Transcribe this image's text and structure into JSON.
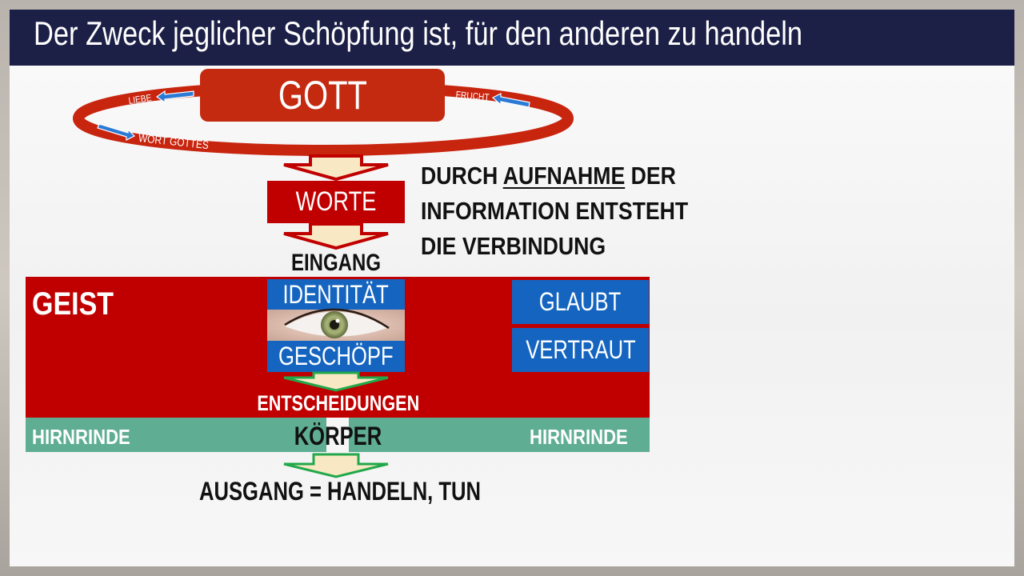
{
  "title": "Der Zweck jeglicher Schöpfung ist, für den anderen zu handeln",
  "cycle": {
    "center": "GOTT",
    "labels": {
      "love": "LIEBE",
      "fruit": "FRUCHT",
      "word": "WORT GOTTES"
    }
  },
  "words": "WORTE",
  "input": "EINGANG",
  "explanation": {
    "line1_pre": "DURCH ",
    "line1_underlined": "AUFNAHME",
    "line1_post": " DER",
    "line2": "INFORMATION ENTSTEHT",
    "line3": "DIE VERBINDUNG"
  },
  "spirit": {
    "label": "GEIST",
    "identity": "IDENTITÄT",
    "creature": "GESCHÖPF",
    "believes": "GLAUBT",
    "trusts": "VERTRAUT",
    "decisions": "ENTSCHEIDUNGEN"
  },
  "body": {
    "left": "HIRNRINDE",
    "center": "KÖRPER",
    "right": "HIRNRINDE"
  },
  "output": "AUSGANG = HANDELN, TUN",
  "colors": {
    "title_bar": "#1c1f46",
    "red": "#c00000",
    "ring": "#c8250f",
    "blue": "#1565c0",
    "teal": "#5fae93",
    "arrow_green": "#22a84a",
    "arrow_fill": "#f8e8c4"
  }
}
